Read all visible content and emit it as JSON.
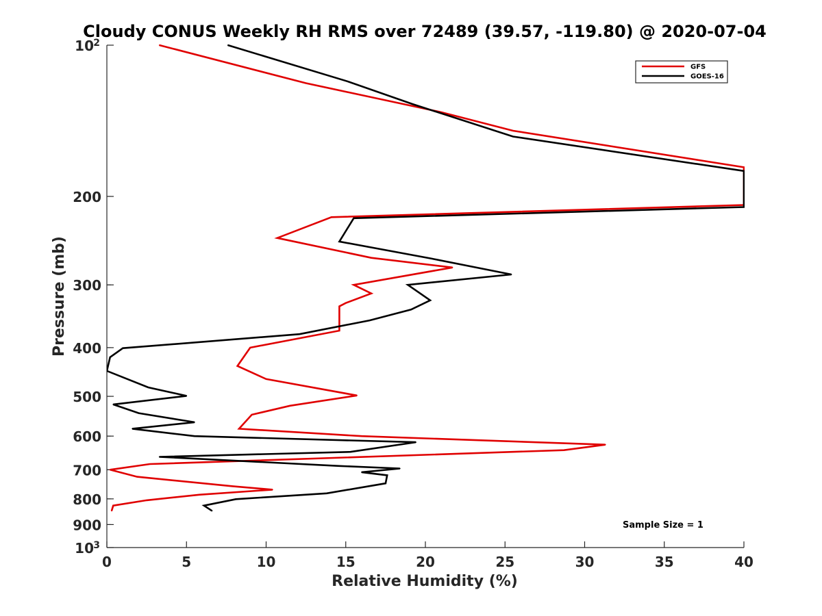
{
  "chart_data": {
    "type": "line",
    "title": "Cloudy CONUS Weekly RH RMS over 72489 (39.57, -119.80) @ 2020-07-04",
    "xlabel": "Relative Humidity (%)",
    "ylabel": "Pressure (mb)",
    "xlim": [
      0,
      40
    ],
    "ylim": [
      100,
      1000
    ],
    "y_scale": "log",
    "y_reversed": true,
    "grid": false,
    "legend_position": "top-right",
    "x_ticks": [
      "0",
      "5",
      "10",
      "15",
      "20",
      "25",
      "30",
      "35",
      "40"
    ],
    "y_ticks": [
      {
        "value": 100,
        "base": "10",
        "exp": "2"
      },
      {
        "value": 200,
        "base": "200",
        "exp": ""
      },
      {
        "value": 300,
        "base": "300",
        "exp": ""
      },
      {
        "value": 400,
        "base": "400",
        "exp": ""
      },
      {
        "value": 500,
        "base": "500",
        "exp": ""
      },
      {
        "value": 600,
        "base": "600",
        "exp": ""
      },
      {
        "value": 700,
        "base": "700",
        "exp": ""
      },
      {
        "value": 800,
        "base": "800",
        "exp": ""
      },
      {
        "value": 900,
        "base": "900",
        "exp": ""
      },
      {
        "value": 1000,
        "base": "10",
        "exp": "3"
      }
    ],
    "series": [
      {
        "name": "GFS",
        "color": "#e00000",
        "points": [
          [
            3.3,
            100
          ],
          [
            12.5,
            119
          ],
          [
            21.0,
            136
          ],
          [
            25.5,
            148
          ],
          [
            40.0,
            175
          ],
          [
            40.0,
            208
          ],
          [
            14.1,
            220
          ],
          [
            10.7,
            242
          ],
          [
            16.6,
            265
          ],
          [
            21.7,
            277
          ],
          [
            15.5,
            300
          ],
          [
            16.6,
            312
          ],
          [
            15.0,
            326
          ],
          [
            14.6,
            331
          ],
          [
            14.6,
            370
          ],
          [
            9.0,
            400
          ],
          [
            8.2,
            435
          ],
          [
            10.0,
            462
          ],
          [
            15.7,
            498
          ],
          [
            11.5,
            522
          ],
          [
            9.1,
            544
          ],
          [
            8.3,
            580
          ],
          [
            16.0,
            600
          ],
          [
            31.3,
            624
          ],
          [
            28.7,
            640
          ],
          [
            2.7,
            682
          ],
          [
            0.2,
            700
          ],
          [
            1.9,
            723
          ],
          [
            7.9,
            755
          ],
          [
            10.4,
            767
          ],
          [
            5.8,
            785
          ],
          [
            2.5,
            805
          ],
          [
            0.4,
            825
          ],
          [
            0.3,
            845
          ]
        ]
      },
      {
        "name": "GOES-16",
        "color": "#000000",
        "points": [
          [
            7.6,
            100
          ],
          [
            15.1,
            118
          ],
          [
            19.2,
            131
          ],
          [
            25.5,
            152
          ],
          [
            40.0,
            178
          ],
          [
            40.0,
            210
          ],
          [
            15.5,
            221
          ],
          [
            14.6,
            246
          ],
          [
            20.4,
            266
          ],
          [
            25.4,
            286
          ],
          [
            18.9,
            300
          ],
          [
            20.3,
            322
          ],
          [
            19.1,
            336
          ],
          [
            16.5,
            353
          ],
          [
            12.1,
            376
          ],
          [
            1.0,
            401
          ],
          [
            0.2,
            418
          ],
          [
            0.0,
            445
          ],
          [
            2.6,
            480
          ],
          [
            5.0,
            499
          ],
          [
            0.4,
            519
          ],
          [
            2.0,
            540
          ],
          [
            5.5,
            563
          ],
          [
            1.6,
            580
          ],
          [
            5.5,
            600
          ],
          [
            19.4,
            617
          ],
          [
            15.3,
            645
          ],
          [
            3.3,
            660
          ],
          [
            14.6,
            688
          ],
          [
            18.4,
            696
          ],
          [
            16.0,
            708
          ],
          [
            17.6,
            718
          ],
          [
            17.5,
            745
          ],
          [
            13.8,
            780
          ],
          [
            8.1,
            801
          ],
          [
            6.1,
            825
          ],
          [
            6.6,
            845
          ]
        ]
      }
    ],
    "annotations": [
      "Sample Size = 1"
    ]
  }
}
